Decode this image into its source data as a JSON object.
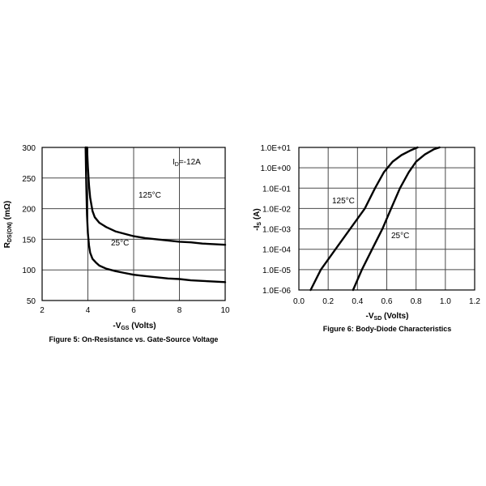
{
  "chart_data": [
    {
      "type": "line",
      "caption": "Figure 5: On-Resistance vs. Gate-Source Voltage",
      "xlabel": {
        "main": "-V",
        "sub": "GS",
        "rest": " (Volts)"
      },
      "ylabel": {
        "main": "R",
        "sub": "DS(ON)",
        "rest": " (mΩ)"
      },
      "xlim": [
        2,
        10
      ],
      "ylim": [
        50,
        300
      ],
      "xticks": [
        "2",
        "4",
        "6",
        "8",
        "10"
      ],
      "yticks": [
        "300",
        "250",
        "200",
        "150",
        "100",
        "50"
      ],
      "grid": true,
      "annotations": [
        {
          "main": "I",
          "sub": "D",
          "rest": "=-12A"
        },
        {
          "text": "125°C"
        },
        {
          "text": "25°C"
        }
      ],
      "series": [
        {
          "name": "125°C",
          "x": [
            3.96,
            4.0,
            4.05,
            4.1,
            4.2,
            4.3,
            4.5,
            4.8,
            5.2,
            5.6,
            6.0,
            6.5,
            7.0,
            7.5,
            8.0,
            8.5,
            9.0,
            9.5,
            10.0
          ],
          "y": [
            300,
            268,
            238,
            218,
            196,
            186,
            177,
            170,
            163,
            159,
            155,
            152,
            150,
            148,
            146,
            145,
            143,
            142,
            141
          ]
        },
        {
          "name": "25°C",
          "x": [
            3.9,
            3.93,
            3.96,
            4.0,
            4.05,
            4.1,
            4.2,
            4.35,
            4.5,
            4.8,
            5.2,
            5.6,
            6.0,
            6.5,
            7.0,
            7.5,
            8.0,
            8.5,
            9.0,
            9.5,
            10.0
          ],
          "y": [
            300,
            240,
            190,
            160,
            140,
            128,
            118,
            112,
            107,
            102,
            98,
            95,
            92,
            90,
            88,
            86,
            85,
            83,
            82,
            81,
            80
          ]
        }
      ]
    },
    {
      "type": "line",
      "caption": "Figure 6: Body-Diode Characteristics",
      "xlabel": {
        "main": "-V",
        "sub": "SD",
        "rest": " (Volts)"
      },
      "ylabel": {
        "main": "-I",
        "sub": "S",
        "rest": " (A)"
      },
      "xlim": [
        0,
        1.2
      ],
      "ylim": [
        1e-06,
        10
      ],
      "yscale": "log",
      "xticks": [
        "0.0",
        "0.2",
        "0.4",
        "0.6",
        "0.8",
        "1.0",
        "1.2"
      ],
      "yticks": [
        "1.0E+01",
        "1.0E+00",
        "1.0E-01",
        "1.0E-02",
        "1.0E-03",
        "1.0E-04",
        "1.0E-05",
        "1.0E-06"
      ],
      "grid": true,
      "annotations": [
        {
          "text": "125°C"
        },
        {
          "text": "25°C"
        }
      ],
      "series": [
        {
          "name": "125°C",
          "x": [
            0.08,
            0.15,
            0.25,
            0.35,
            0.45,
            0.52,
            0.58,
            0.64,
            0.7,
            0.76,
            0.81
          ],
          "y": [
            1e-06,
            1e-05,
            0.0001,
            0.001,
            0.01,
            0.1,
            0.6,
            2.0,
            4.2,
            7.0,
            10
          ]
        },
        {
          "name": "25°C",
          "x": [
            0.37,
            0.43,
            0.5,
            0.57,
            0.63,
            0.69,
            0.75,
            0.8,
            0.86,
            0.92,
            0.96
          ],
          "y": [
            1e-06,
            1e-05,
            0.0001,
            0.001,
            0.01,
            0.1,
            0.6,
            2.0,
            4.5,
            8.0,
            10
          ]
        }
      ]
    }
  ]
}
